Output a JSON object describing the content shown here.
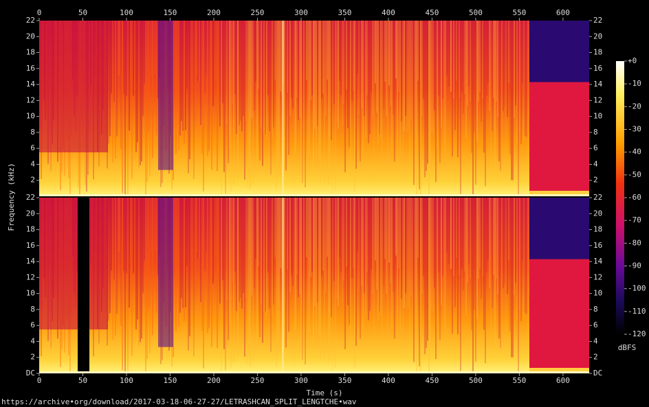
{
  "chart_data": {
    "type": "spectrogram",
    "x_label": "Time (s)",
    "y_label": "Frequency (kHz)",
    "xlim": [
      0,
      630
    ],
    "xticks": [
      0,
      50,
      100,
      150,
      200,
      250,
      300,
      350,
      400,
      450,
      500,
      550,
      600
    ],
    "channels": [
      {
        "ylim": [
          0,
          22
        ],
        "yticks": [
          2,
          4,
          6,
          8,
          10,
          12,
          14,
          16,
          18,
          20,
          22
        ]
      },
      {
        "ylim": [
          0,
          22
        ],
        "yticks": [
          {
            "value": 0,
            "label": "DC"
          },
          2,
          4,
          6,
          8,
          10,
          12,
          14,
          16,
          18,
          20,
          22
        ]
      }
    ],
    "colorbar": {
      "label": "dBFS",
      "lim": [
        -120,
        0
      ],
      "ticks": [
        {
          "value": 0,
          "label": "+0"
        },
        -10,
        -20,
        -30,
        -40,
        -50,
        -60,
        -70,
        -80,
        -90,
        -100,
        -110,
        -120
      ]
    },
    "footer": "https://archive•org/download/2017-03-18-06-27-27/LETRASHCAN_SPLIT_LENGTCHE•wav"
  }
}
